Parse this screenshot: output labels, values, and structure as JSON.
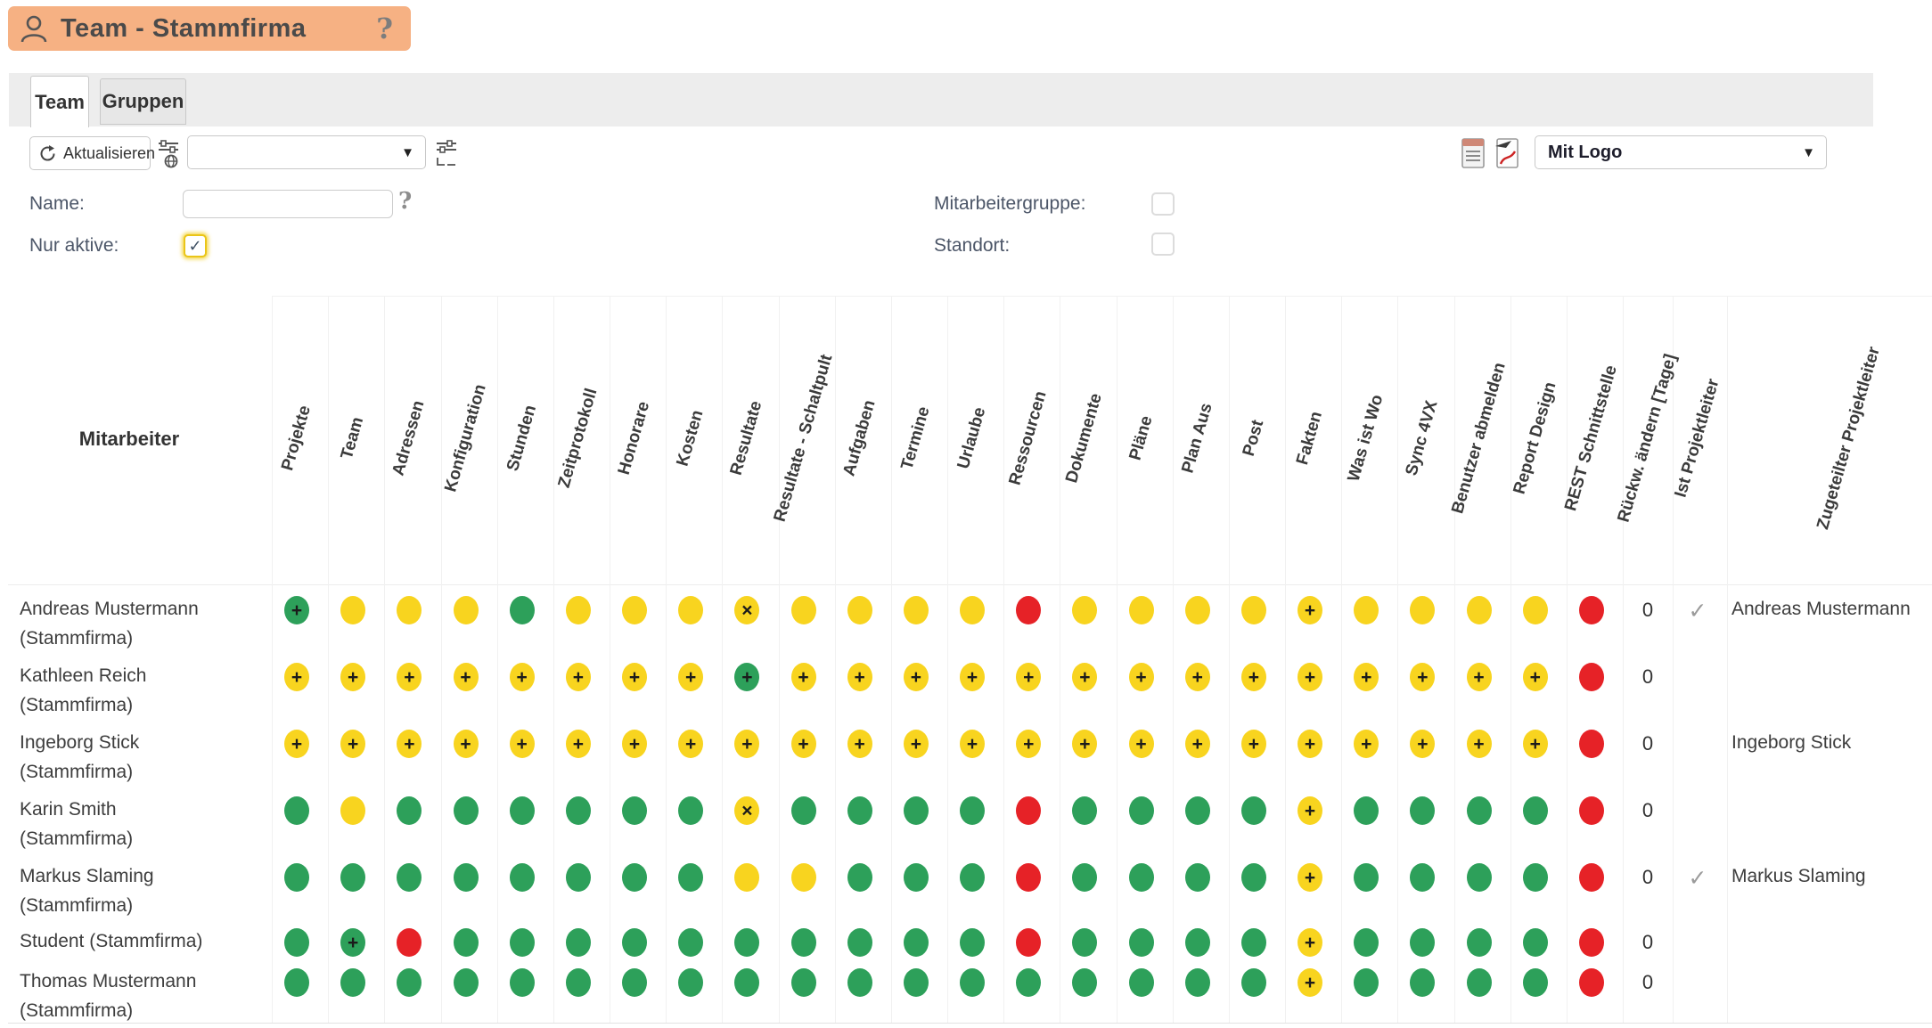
{
  "header": {
    "title": "Team - Stammfirma",
    "help_glyph": "?"
  },
  "tabs": [
    {
      "label": "Team",
      "active": true
    },
    {
      "label": "Gruppen",
      "active": false
    }
  ],
  "toolbar": {
    "refresh_label": "Aktualisieren",
    "view_select_value": "",
    "export_select_value": "Mit Logo",
    "dropdown_arrow": "▼"
  },
  "filters": {
    "name_label": "Name:",
    "name_value": "",
    "name_help_glyph": "?",
    "nur_aktive_label": "Nur aktive:",
    "nur_aktive_checked": true,
    "mitarbeitergruppe_label": "Mitarbeitergruppe:",
    "mitarbeitergruppe_checked": false,
    "standort_label": "Standort:",
    "standort_checked": false
  },
  "icons": {
    "person": "person-icon",
    "refresh": "refresh-icon",
    "filter_globe": "filter-globe-icon",
    "settings": "settings-sliders-icon",
    "csv_export": "csv-export-icon",
    "pdf_export": "pdf-export-icon",
    "check_glyph": "✓"
  },
  "table": {
    "row_header": "Mitarbeiter",
    "columns": [
      "Projekte",
      "Team",
      "Adressen",
      "Konfiguration",
      "Stunden",
      "Zeitprotokoll",
      "Honorare",
      "Kosten",
      "Resultate",
      "Resultate - Schaltpult",
      "Aufgaben",
      "Termine",
      "Urlaube",
      "Ressourcen",
      "Dokumente",
      "Pläne",
      "Plan Aus",
      "Post",
      "Fakten",
      "Was ist Wo",
      "Sync 4VX",
      "Benutzer abmelden",
      "Report Design",
      "REST Schnittstelle"
    ],
    "extra_columns": [
      "Rückw. ändern [Tage]",
      "Ist Projektleiter",
      "Zugeteilter Projektleiter"
    ],
    "status_colors": {
      "g": "#2da05a",
      "y": "#f8d41f",
      "r": "#e62227"
    },
    "rows": [
      {
        "name": "Andreas Mustermann",
        "name2": "(Stammfirma)",
        "dots": [
          "g+",
          "y",
          "y",
          "y",
          "g",
          "y",
          "y",
          "y",
          "yx",
          "y",
          "y",
          "y",
          "y",
          "r",
          "y",
          "y",
          "y",
          "y",
          "y+",
          "y",
          "y",
          "y",
          "y",
          "r"
        ],
        "rueckw": "0",
        "ist_projektleiter": true,
        "zugeteilter_projektleiter": "Andreas Mustermann"
      },
      {
        "name": "Kathleen Reich",
        "name2": "(Stammfirma)",
        "dots": [
          "y+",
          "y+",
          "y+",
          "y+",
          "y+",
          "y+",
          "y+",
          "y+",
          "g+",
          "y+",
          "y+",
          "y+",
          "y+",
          "y+",
          "y+",
          "y+",
          "y+",
          "y+",
          "y+",
          "y+",
          "y+",
          "y+",
          "y+",
          "r"
        ],
        "rueckw": "0",
        "ist_projektleiter": false,
        "zugeteilter_projektleiter": ""
      },
      {
        "name": "Ingeborg Stick",
        "name2": "(Stammfirma)",
        "dots": [
          "y+",
          "y+",
          "y+",
          "y+",
          "y+",
          "y+",
          "y+",
          "y+",
          "y+",
          "y+",
          "y+",
          "y+",
          "y+",
          "y+",
          "y+",
          "y+",
          "y+",
          "y+",
          "y+",
          "y+",
          "y+",
          "y+",
          "y+",
          "r"
        ],
        "rueckw": "0",
        "ist_projektleiter": false,
        "zugeteilter_projektleiter": "Ingeborg Stick"
      },
      {
        "name": "Karin Smith",
        "name2": "(Stammfirma)",
        "dots": [
          "g",
          "y",
          "g",
          "g",
          "g",
          "g",
          "g",
          "g",
          "yx",
          "g",
          "g",
          "g",
          "g",
          "r",
          "g",
          "g",
          "g",
          "g",
          "y+",
          "g",
          "g",
          "g",
          "g",
          "r"
        ],
        "rueckw": "0",
        "ist_projektleiter": false,
        "zugeteilter_projektleiter": ""
      },
      {
        "name": "Markus Slaming",
        "name2": "(Stammfirma)",
        "dots": [
          "g",
          "g",
          "g",
          "g",
          "g",
          "g",
          "g",
          "g",
          "y",
          "y",
          "g",
          "g",
          "g",
          "r",
          "g",
          "g",
          "g",
          "g",
          "y+",
          "g",
          "g",
          "g",
          "g",
          "r"
        ],
        "rueckw": "0",
        "ist_projektleiter": true,
        "zugeteilter_projektleiter": "Markus Slaming"
      },
      {
        "name": "Student (Stammfirma)",
        "name2": "",
        "dots": [
          "g",
          "g+",
          "r",
          "g",
          "g",
          "g",
          "g",
          "g",
          "g",
          "g",
          "g",
          "g",
          "g",
          "r",
          "g",
          "g",
          "g",
          "g",
          "y+",
          "g",
          "g",
          "g",
          "g",
          "r"
        ],
        "rueckw": "0",
        "ist_projektleiter": false,
        "zugeteilter_projektleiter": ""
      },
      {
        "name": "Thomas Mustermann",
        "name2": "(Stammfirma)",
        "dots": [
          "g",
          "g",
          "g",
          "g",
          "g",
          "g",
          "g",
          "g",
          "g",
          "g",
          "g",
          "g",
          "g",
          "g",
          "g",
          "g",
          "g",
          "g",
          "y+",
          "g",
          "g",
          "g",
          "g",
          "r"
        ],
        "rueckw": "0",
        "ist_projektleiter": false,
        "zugeteilter_projektleiter": ""
      }
    ]
  }
}
